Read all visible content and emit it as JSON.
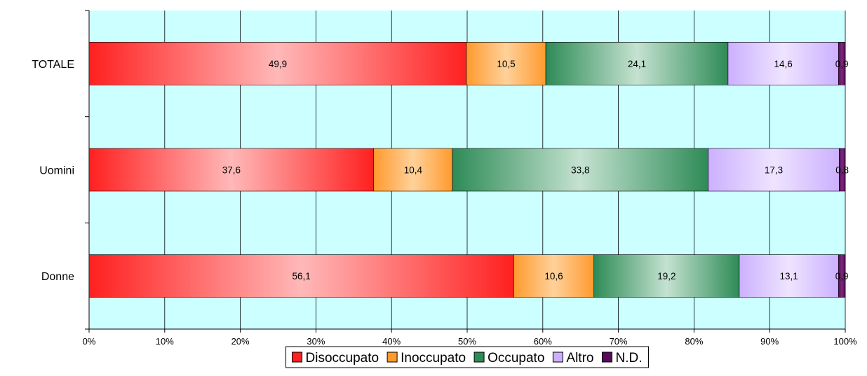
{
  "chart_data": {
    "type": "bar",
    "orientation": "horizontal",
    "stacked": "percent",
    "categories": [
      "TOTALE",
      "Uomini",
      "Donne"
    ],
    "series": [
      {
        "name": "Disoccupato",
        "values": [
          49.9,
          37.6,
          56.1
        ],
        "color": "#ff2020",
        "highlight": "#ffb8b8"
      },
      {
        "name": "Inoccupato",
        "values": [
          10.5,
          10.4,
          10.6
        ],
        "color": "#ff9a2e",
        "highlight": "#ffd19a"
      },
      {
        "name": "Occupato",
        "values": [
          24.1,
          33.8,
          19.2
        ],
        "color": "#2e8b57",
        "highlight": "#c4e2d0"
      },
      {
        "name": "Altro",
        "values": [
          14.6,
          17.3,
          13.1
        ],
        "color": "#ccb0ff",
        "highlight": "#eee4ff"
      },
      {
        "name": "N.D.",
        "values": [
          0.9,
          0.8,
          0.9
        ],
        "color": "#5a0a5a",
        "highlight": "#7a2a7a"
      }
    ],
    "data_labels": [
      [
        "49,9",
        "10,5",
        "24,1",
        "14,6",
        "0,9"
      ],
      [
        "37,6",
        "10,4",
        "33,8",
        "17,3",
        "0,8"
      ],
      [
        "56,1",
        "10,6",
        "19,2",
        "13,1",
        "0,9"
      ]
    ],
    "x_ticks": [
      "0%",
      "10%",
      "20%",
      "30%",
      "40%",
      "50%",
      "60%",
      "70%",
      "80%",
      "90%",
      "100%"
    ],
    "xlim": [
      0,
      100
    ],
    "grid": true,
    "plot_background": "#ccffff",
    "legend_position": "bottom",
    "title": "",
    "xlabel": "",
    "ylabel": ""
  }
}
